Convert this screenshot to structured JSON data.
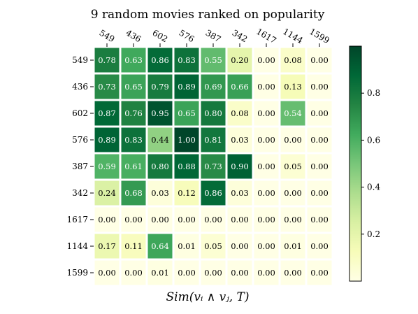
{
  "chart_data": {
    "type": "heatmap",
    "title": "9 random movies ranked on popularity",
    "xlabel": "Sim(vᵢ ∧ vⱼ, T)",
    "ylabel": "",
    "x_categories": [
      "549",
      "436",
      "602",
      "576",
      "387",
      "342",
      "1617",
      "1144",
      "1599"
    ],
    "y_categories": [
      "549",
      "436",
      "602",
      "576",
      "387",
      "342",
      "1617",
      "1144",
      "1599"
    ],
    "values": [
      [
        0.78,
        0.63,
        0.86,
        0.83,
        0.55,
        0.2,
        0.0,
        0.08,
        0.0
      ],
      [
        0.73,
        0.65,
        0.79,
        0.89,
        0.69,
        0.66,
        0.0,
        0.13,
        0.0
      ],
      [
        0.87,
        0.76,
        0.95,
        0.65,
        0.8,
        0.08,
        0.0,
        0.54,
        0.0
      ],
      [
        0.89,
        0.83,
        0.44,
        1.0,
        0.81,
        0.03,
        0.0,
        0.0,
        0.0
      ],
      [
        0.59,
        0.61,
        0.8,
        0.88,
        0.73,
        0.9,
        0.0,
        0.05,
        0.0
      ],
      [
        0.24,
        0.68,
        0.03,
        0.12,
        0.86,
        0.03,
        0.0,
        0.0,
        0.0
      ],
      [
        0.0,
        0.0,
        0.0,
        0.0,
        0.0,
        0.0,
        0.0,
        0.0,
        0.0
      ],
      [
        0.17,
        0.11,
        0.64,
        0.01,
        0.05,
        0.0,
        0.0,
        0.01,
        0.0
      ],
      [
        0.0,
        0.0,
        0.01,
        0.0,
        0.0,
        0.0,
        0.0,
        0.0,
        0.0
      ]
    ],
    "colorscale": "YlGn",
    "colorbar": {
      "range": [
        0,
        1
      ],
      "ticks": [
        "0.2",
        "0.4",
        "0.6",
        "0.8"
      ]
    },
    "grid": false
  }
}
